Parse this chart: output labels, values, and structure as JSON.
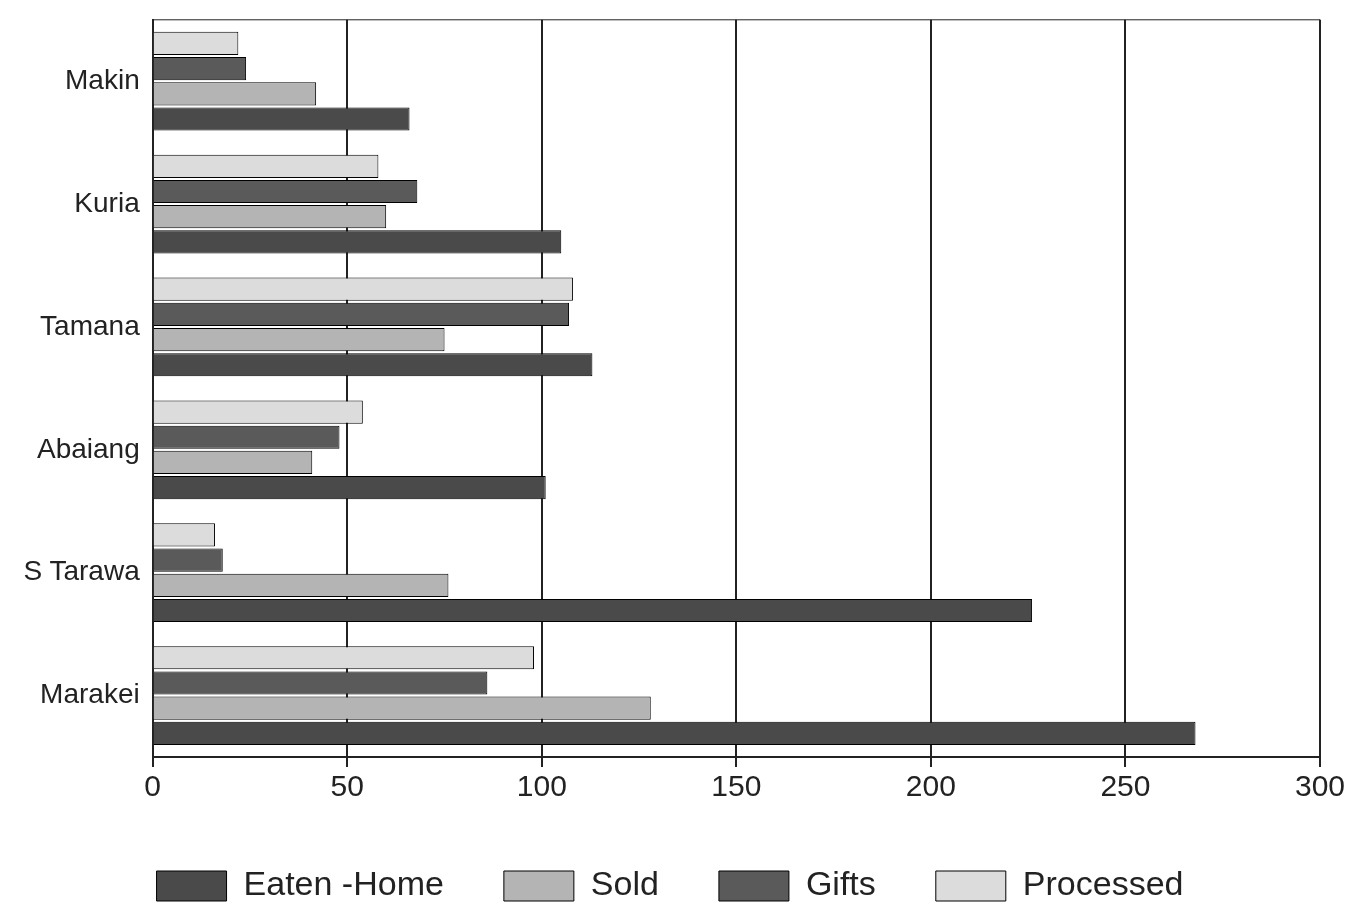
{
  "chart_data": {
    "type": "bar",
    "orientation": "horizontal",
    "categories": [
      "Makin",
      "Kuria",
      "Tamana",
      "Abaiang",
      "S Tarawa",
      "Marakei"
    ],
    "series": [
      {
        "name": "Processed",
        "color": "#dcdcdc",
        "values": [
          22,
          58,
          108,
          54,
          16,
          98
        ]
      },
      {
        "name": "Gifts",
        "color": "#5a5a5a",
        "values": [
          24,
          68,
          107,
          48,
          18,
          86
        ]
      },
      {
        "name": "Sold",
        "color": "#b4b4b4",
        "values": [
          42,
          60,
          75,
          41,
          76,
          128
        ]
      },
      {
        "name": "Eaten -Home",
        "color": "#4a4a4a",
        "values": [
          66,
          105,
          113,
          101,
          226,
          268
        ]
      }
    ],
    "xlim": [
      0,
      300
    ],
    "xticks": [
      0,
      50,
      100,
      150,
      200,
      250,
      300
    ],
    "grid": "x",
    "legend": "bottom"
  }
}
